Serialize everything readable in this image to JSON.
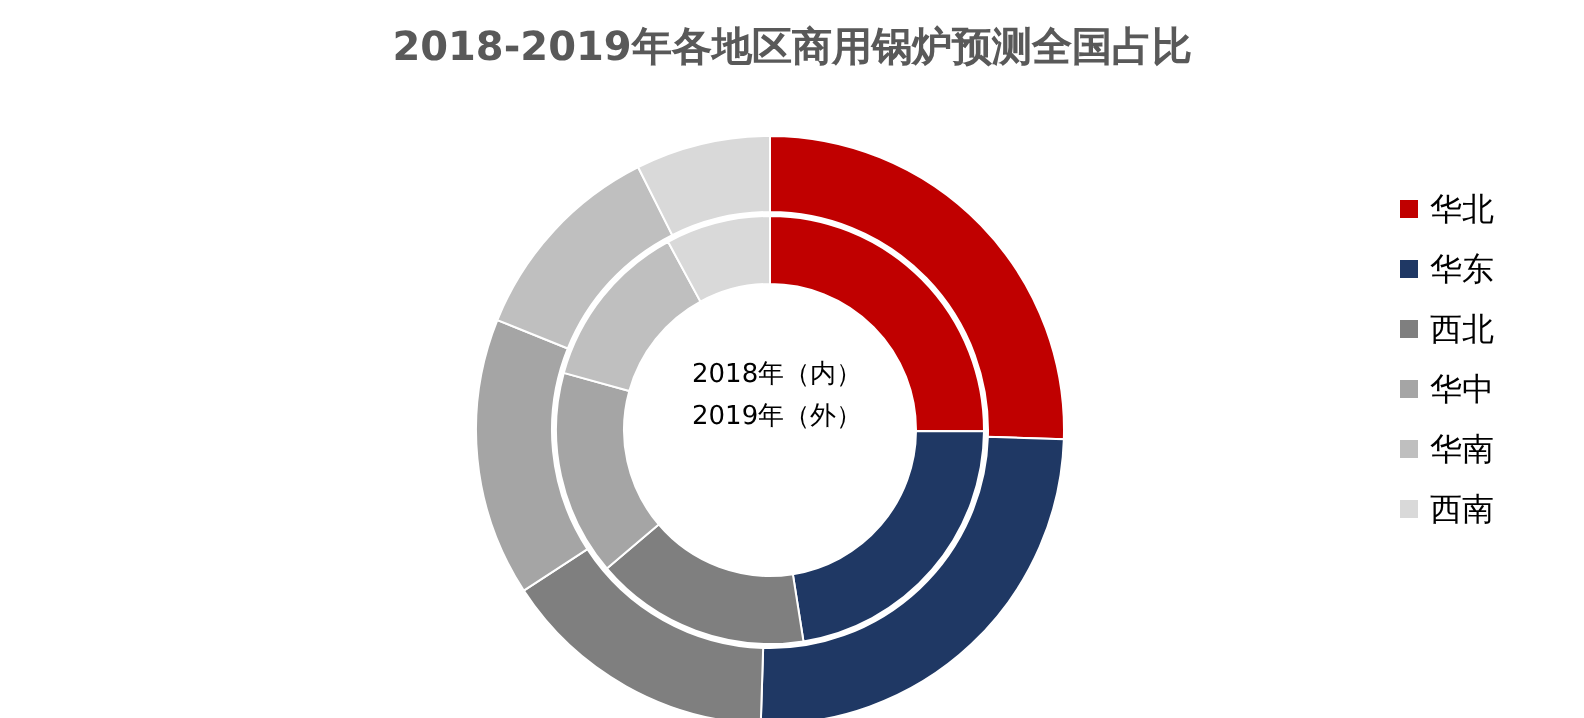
{
  "chart_data": {
    "type": "donut",
    "title": "2018-2019年各地区商用锅炉预测全国占比",
    "categories": [
      "华北",
      "华东",
      "西北",
      "华中",
      "华南",
      "西南"
    ],
    "colors": [
      "#c00000",
      "#1f3864",
      "#7f7f7f",
      "#a5a5a5",
      "#bfbfbf",
      "#d9d9d9"
    ],
    "series": [
      {
        "values": [
          25.1,
          22.4,
          16.3,
          15.5,
          12.8,
          7.9
        ]
      },
      {
        "values": [
          25.5,
          25.0,
          15.3,
          15.3,
          11.5,
          7.4
        ]
      }
    ],
    "annotations": [
      "2018年（内）",
      "2019年（外）"
    ],
    "legend": "right"
  }
}
